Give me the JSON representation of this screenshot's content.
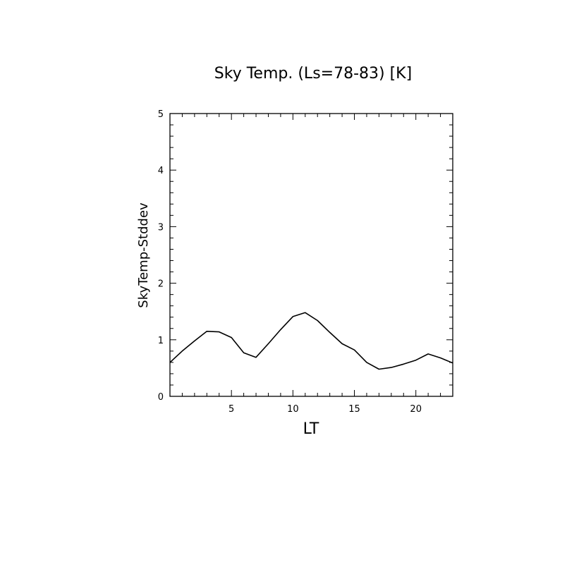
{
  "chart_data": {
    "type": "line",
    "title": "Sky Temp. (Ls=78-83) [K]",
    "xlabel": "LT",
    "ylabel": "SkyTemp-Stddev",
    "xlim": [
      0.0,
      23.0
    ],
    "ylim": [
      0,
      5
    ],
    "x_ticks": [
      5,
      10,
      15,
      20
    ],
    "y_ticks": [
      0,
      1,
      2,
      3,
      4,
      5
    ],
    "grid": false,
    "series": [
      {
        "x": [
          0.0,
          1.0,
          2.0,
          3.0,
          4.0,
          5.0,
          6.0,
          7.0,
          8.0,
          9.0,
          10.0,
          11.0,
          12.0,
          13.0,
          14.0,
          15.0,
          16.0,
          17.0,
          18.0,
          19.0,
          20.0,
          21.0,
          22.0,
          23.0
        ],
        "values": [
          0.6,
          0.8,
          0.98,
          1.15,
          1.14,
          1.04,
          0.77,
          0.69,
          0.93,
          1.18,
          1.41,
          1.48,
          1.34,
          1.13,
          0.93,
          0.82,
          0.6,
          0.48,
          0.51,
          0.57,
          0.64,
          0.75,
          0.68,
          0.59
        ],
        "color": "#000000"
      }
    ]
  }
}
